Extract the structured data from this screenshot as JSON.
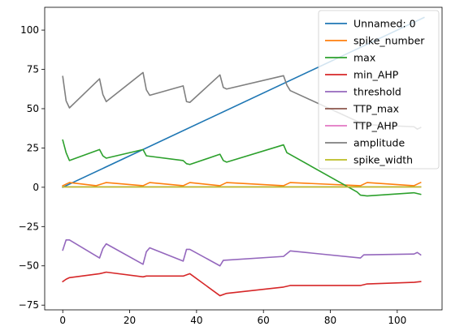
{
  "chart_data": {
    "type": "line",
    "title": "",
    "xlabel": "",
    "ylabel": "",
    "xlim": [
      -5.4,
      113.4
    ],
    "ylim": [
      -78,
      114.5
    ],
    "x_ticks": [
      0,
      20,
      40,
      60,
      80,
      100
    ],
    "y_ticks": [
      -75,
      -50,
      -25,
      0,
      25,
      50,
      75,
      100
    ],
    "x_tick_labels": [
      "0",
      "20",
      "40",
      "60",
      "80",
      "100"
    ],
    "y_tick_labels": [
      "−75",
      "−50",
      "−25",
      "0",
      "25",
      "50",
      "75",
      "100"
    ],
    "legend_position": "top-right",
    "grid": false,
    "series": [
      {
        "name": "Unnamed: 0",
        "color": "#1f77b4",
        "points": [
          [
            0,
            0
          ],
          [
            108,
            108
          ]
        ]
      },
      {
        "name": "spike_number",
        "color": "#ff7f0e",
        "points": [
          [
            0,
            1
          ],
          [
            2,
            3
          ],
          [
            10,
            1
          ],
          [
            13,
            3
          ],
          [
            24,
            1
          ],
          [
            26,
            3
          ],
          [
            36,
            1
          ],
          [
            38,
            3
          ],
          [
            47,
            1
          ],
          [
            49,
            3
          ],
          [
            66,
            1
          ],
          [
            68,
            3
          ],
          [
            89,
            1
          ],
          [
            91,
            3
          ],
          [
            105,
            1
          ],
          [
            107,
            3
          ]
        ]
      },
      {
        "name": "max",
        "color": "#2ca02c",
        "points": [
          [
            0,
            30
          ],
          [
            1,
            22
          ],
          [
            2,
            17
          ],
          [
            11,
            24
          ],
          [
            12,
            20
          ],
          [
            13,
            18.5
          ],
          [
            24,
            24
          ],
          [
            25,
            20
          ],
          [
            36,
            17
          ],
          [
            37,
            15
          ],
          [
            38,
            14.5
          ],
          [
            47,
            21
          ],
          [
            48,
            17
          ],
          [
            49,
            16
          ],
          [
            66,
            27
          ],
          [
            67,
            22
          ],
          [
            88,
            -3
          ],
          [
            89,
            -5
          ],
          [
            91,
            -5.5
          ],
          [
            105,
            -3.5
          ],
          [
            107,
            -4.5
          ]
        ]
      },
      {
        "name": "min_AHP",
        "color": "#d62728",
        "points": [
          [
            0,
            -60
          ],
          [
            1,
            -58.5
          ],
          [
            2,
            -57.5
          ],
          [
            11,
            -55
          ],
          [
            13,
            -54
          ],
          [
            24,
            -57
          ],
          [
            25,
            -56.5
          ],
          [
            36,
            -56.5
          ],
          [
            38,
            -55
          ],
          [
            47,
            -69
          ],
          [
            49,
            -67.5
          ],
          [
            66,
            -63.5
          ],
          [
            68,
            -62.5
          ],
          [
            89,
            -62.5
          ],
          [
            91,
            -61.5
          ],
          [
            105,
            -60.5
          ],
          [
            107,
            -60
          ]
        ]
      },
      {
        "name": "threshold",
        "color": "#9467bd",
        "points": [
          [
            0,
            -40
          ],
          [
            1,
            -33.5
          ],
          [
            2,
            -33.5
          ],
          [
            11,
            -45
          ],
          [
            12,
            -39
          ],
          [
            13,
            -36
          ],
          [
            24,
            -49
          ],
          [
            25,
            -41
          ],
          [
            26,
            -38.5
          ],
          [
            36,
            -47
          ],
          [
            37,
            -39.5
          ],
          [
            38,
            -39.5
          ],
          [
            47,
            -50
          ],
          [
            48,
            -46.5
          ],
          [
            66,
            -44
          ],
          [
            68,
            -40.5
          ],
          [
            89,
            -45
          ],
          [
            90,
            -43
          ],
          [
            105,
            -42.5
          ],
          [
            106,
            -41.5
          ],
          [
            107,
            -43
          ]
        ]
      },
      {
        "name": "TTP_max",
        "color": "#8c564b",
        "points": [
          [
            0,
            0.3
          ],
          [
            107,
            0.3
          ]
        ]
      },
      {
        "name": "TTP_AHP",
        "color": "#e377c2",
        "points": [
          [
            0,
            0.3
          ],
          [
            107,
            0.3
          ]
        ]
      },
      {
        "name": "amplitude",
        "color": "#7f7f7f",
        "points": [
          [
            0,
            70.5
          ],
          [
            1,
            55
          ],
          [
            2,
            50.5
          ],
          [
            11,
            69
          ],
          [
            12,
            59
          ],
          [
            13,
            54.5
          ],
          [
            24,
            73
          ],
          [
            25,
            62
          ],
          [
            26,
            58.5
          ],
          [
            36,
            64.5
          ],
          [
            37,
            54.5
          ],
          [
            38,
            54
          ],
          [
            47,
            71.5
          ],
          [
            48,
            63.5
          ],
          [
            49,
            62.5
          ],
          [
            66,
            71
          ],
          [
            67,
            65
          ],
          [
            68,
            61.5
          ],
          [
            88,
            42
          ],
          [
            89,
            40
          ],
          [
            105,
            38.5
          ],
          [
            106,
            37
          ],
          [
            107,
            38
          ]
        ]
      },
      {
        "name": "spike_width",
        "color": "#bcbd22",
        "points": [
          [
            0,
            0.2
          ],
          [
            107,
            0.2
          ]
        ]
      }
    ]
  }
}
